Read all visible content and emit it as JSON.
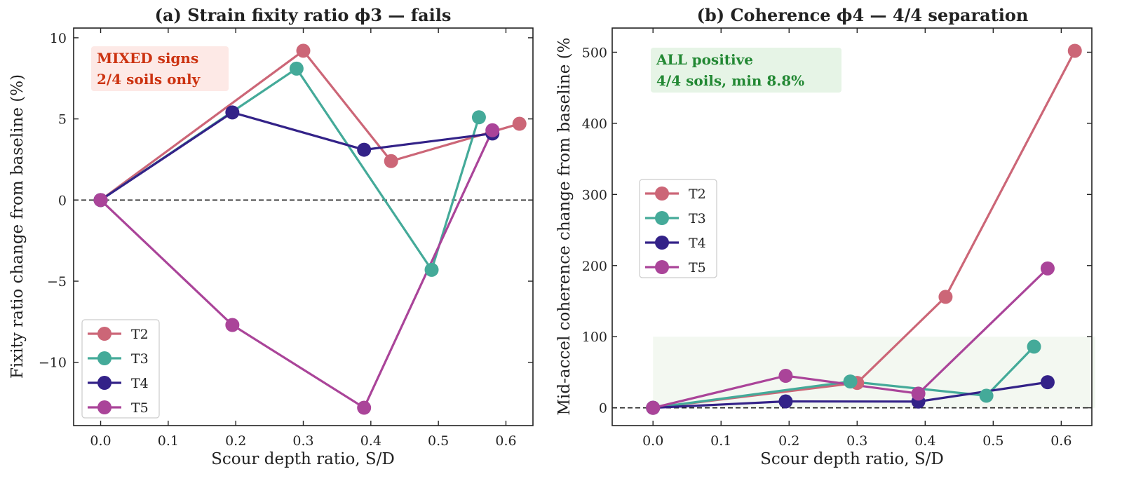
{
  "colors": {
    "T2": "#cc6677",
    "T3": "#44aa99",
    "T4": "#332288",
    "T5": "#aa4499"
  },
  "chart_data": [
    {
      "type": "line",
      "title": "(a) Strain fixity ratio ϕ3 — fails",
      "xlabel": "Scour depth ratio, S/D",
      "ylabel": "Fixity ratio change from baseline (%)",
      "xlim": [
        -0.04,
        0.64
      ],
      "ylim": [
        -13.9,
        10.6
      ],
      "xticks": [
        0.0,
        0.1,
        0.2,
        0.3,
        0.4,
        0.5,
        0.6
      ],
      "xtick_labels": [
        "0.0",
        "0.1",
        "0.2",
        "0.3",
        "0.4",
        "0.5",
        "0.6"
      ],
      "yticks": [
        -10,
        -5,
        0,
        5,
        10
      ],
      "ytick_labels": [
        "−10",
        "−5",
        "0",
        "5",
        "10"
      ],
      "reference_line": 0,
      "legend_position": "lower-left",
      "annotation": {
        "lines": [
          "MIXED signs",
          "2/4 soils only"
        ],
        "color": "#cc3311",
        "bg": "#fde9e6"
      },
      "series": [
        {
          "name": "T2",
          "x": [
            0,
            0.3,
            0.43,
            0.62
          ],
          "y": [
            0,
            9.2,
            2.4,
            4.7
          ]
        },
        {
          "name": "T3",
          "x": [
            0,
            0.29,
            0.49,
            0.56
          ],
          "y": [
            0,
            8.1,
            -4.3,
            5.1
          ]
        },
        {
          "name": "T4",
          "x": [
            0,
            0.195,
            0.39,
            0.58
          ],
          "y": [
            0,
            5.4,
            3.1,
            4.1
          ]
        },
        {
          "name": "T5",
          "x": [
            0,
            0.195,
            0.39,
            0.58
          ],
          "y": [
            0,
            -7.7,
            -12.8,
            4.3
          ]
        }
      ]
    },
    {
      "type": "line",
      "title": "(b) Coherence ϕ4 — 4/4 separation",
      "xlabel": "Scour depth ratio, S/D",
      "ylabel": "Mid-accel coherence change from baseline (%",
      "xlim": [
        -0.06,
        0.645
      ],
      "ylim": [
        -25,
        534
      ],
      "xticks": [
        0.0,
        0.1,
        0.2,
        0.3,
        0.4,
        0.5,
        0.6
      ],
      "xtick_labels": [
        "0.0",
        "0.1",
        "0.2",
        "0.3",
        "0.4",
        "0.5",
        "0.6"
      ],
      "yticks": [
        0,
        100,
        200,
        300,
        400,
        500
      ],
      "ytick_labels": [
        "0",
        "100",
        "200",
        "300",
        "400",
        "500"
      ],
      "reference_line": 0,
      "shaded_band": {
        "x": [
          0,
          0.65
        ],
        "y": [
          0,
          100
        ],
        "color": "#f3f8f1"
      },
      "legend_position": "center-left",
      "annotation": {
        "lines": [
          "ALL positive",
          "4/4 soils, min 8.8%"
        ],
        "color": "#228833",
        "bg": "#e6f4e6"
      },
      "series": [
        {
          "name": "T2",
          "x": [
            0,
            0.3,
            0.43,
            0.62
          ],
          "y": [
            0,
            35,
            156,
            502
          ]
        },
        {
          "name": "T3",
          "x": [
            0,
            0.29,
            0.49,
            0.56
          ],
          "y": [
            0,
            37,
            17,
            86
          ]
        },
        {
          "name": "T4",
          "x": [
            0,
            0.195,
            0.39,
            0.58
          ],
          "y": [
            0,
            9,
            8.8,
            36
          ]
        },
        {
          "name": "T5",
          "x": [
            0,
            0.195,
            0.39,
            0.58
          ],
          "y": [
            0,
            45,
            20,
            196
          ]
        }
      ]
    }
  ]
}
